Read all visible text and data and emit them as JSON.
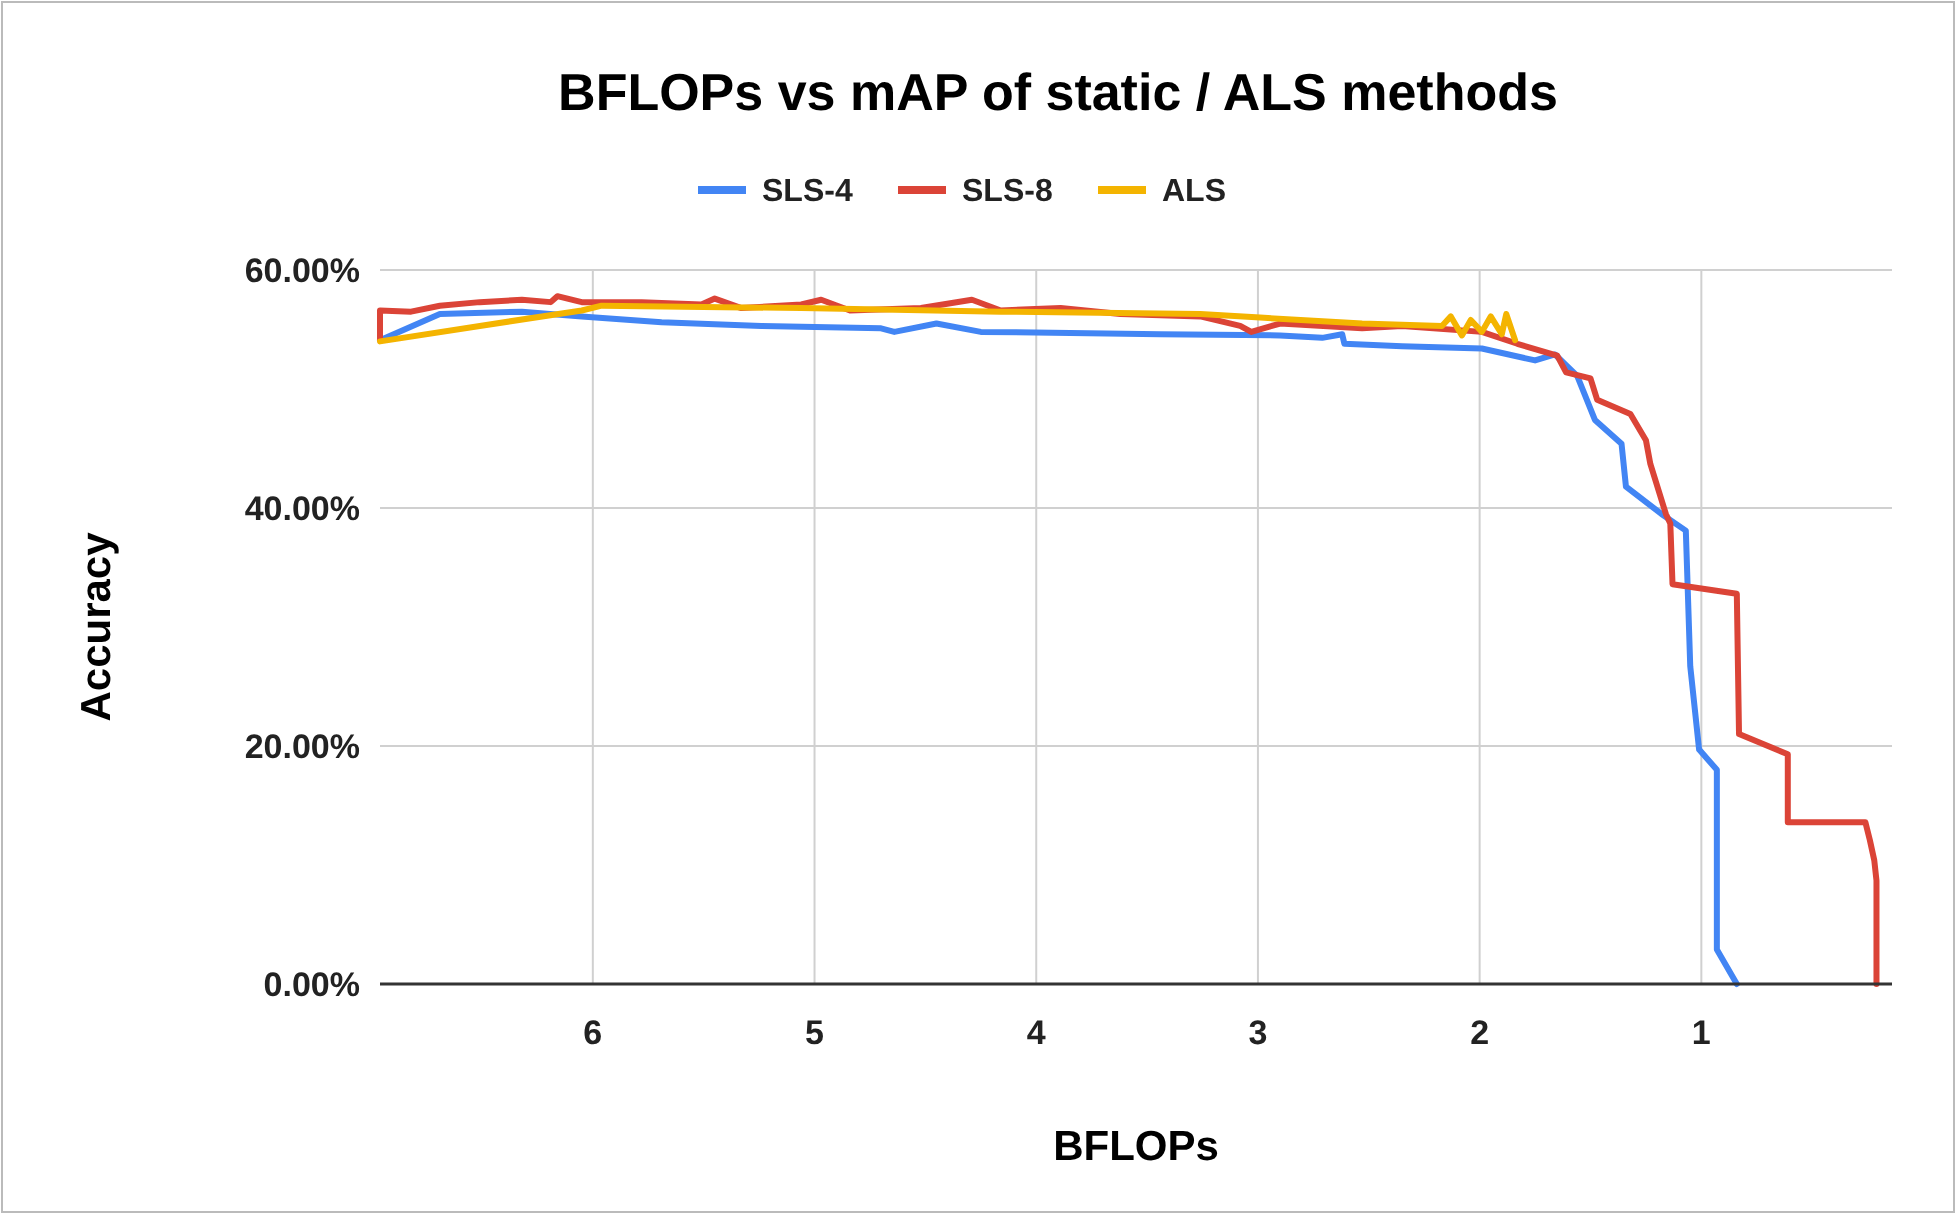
{
  "chart_data": {
    "type": "line",
    "title": "BFLOPs vs mAP of static / ALS methods",
    "xlabel": "BFLOPs",
    "ylabel": "Accuracy",
    "xlim": [
      6.96,
      0.14
    ],
    "xticks": [
      6,
      5,
      4,
      3,
      2,
      1
    ],
    "ylim": [
      0,
      60
    ],
    "yticks": [
      {
        "value": 0,
        "label": "0.00%"
      },
      {
        "value": 20,
        "label": "20.00%"
      },
      {
        "value": 40,
        "label": "40.00%"
      },
      {
        "value": 60,
        "label": "60.00%"
      }
    ],
    "grid": true,
    "legend": "top",
    "marker": "none",
    "line_style": "solid",
    "series": [
      {
        "name": "SLS-4",
        "color": "#4285f4",
        "x": [
          6.96,
          6.69,
          6.32,
          6.05,
          5.69,
          5.24,
          4.7,
          4.64,
          4.45,
          4.25,
          3.44,
          2.9,
          2.71,
          2.62,
          2.61,
          2.35,
          1.99,
          1.75,
          1.66,
          1.56,
          1.48,
          1.36,
          1.34,
          1.18,
          1.07,
          1.05,
          1.01,
          0.93,
          0.93,
          0.84
        ],
        "values": [
          54.1,
          56.3,
          56.5,
          56.1,
          55.6,
          55.3,
          55.1,
          54.8,
          55.5,
          54.8,
          54.6,
          54.5,
          54.3,
          54.6,
          53.8,
          53.6,
          53.4,
          52.4,
          52.9,
          51.1,
          47.4,
          45.4,
          41.8,
          39.5,
          38.1,
          26.7,
          19.7,
          18.0,
          2.9,
          0
        ]
      },
      {
        "name": "SLS-8",
        "color": "#db4437",
        "x": [
          6.96,
          6.96,
          6.82,
          6.69,
          6.51,
          6.32,
          6.19,
          6.16,
          6.05,
          5.78,
          5.51,
          5.45,
          5.33,
          5.06,
          4.97,
          4.84,
          4.52,
          4.29,
          4.16,
          3.89,
          3.62,
          3.26,
          3.08,
          3.03,
          2.9,
          2.53,
          2.35,
          1.99,
          1.83,
          1.65,
          1.61,
          1.5,
          1.47,
          1.32,
          1.25,
          1.23,
          1.16,
          1.14,
          1.13,
          0.84,
          0.83,
          0.61,
          0.61,
          0.26,
          0.24,
          0.22,
          0.21,
          0.21
        ],
        "values": [
          54.1,
          56.6,
          56.5,
          57.0,
          57.3,
          57.5,
          57.3,
          57.8,
          57.3,
          57.3,
          57.1,
          57.6,
          56.8,
          57.1,
          57.5,
          56.6,
          56.8,
          57.5,
          56.6,
          56.8,
          56.3,
          56.1,
          55.3,
          54.8,
          55.5,
          55.1,
          55.3,
          54.8,
          53.8,
          52.8,
          51.4,
          50.9,
          49.1,
          47.9,
          45.7,
          43.7,
          39.5,
          38.7,
          33.6,
          32.8,
          21.0,
          19.3,
          13.6,
          13.6,
          12.1,
          10.4,
          8.7,
          0
        ]
      },
      {
        "name": "ALS",
        "color": "#f4b400",
        "x": [
          6.96,
          6.51,
          6.05,
          5.96,
          5.06,
          4.16,
          3.26,
          2.99,
          2.53,
          2.17,
          2.13,
          2.08,
          2.04,
          1.99,
          1.95,
          1.9,
          1.88,
          1.84
        ],
        "values": [
          54.0,
          55.3,
          56.6,
          57.0,
          56.8,
          56.5,
          56.3,
          56.0,
          55.5,
          55.3,
          56.1,
          54.5,
          55.8,
          54.8,
          56.1,
          54.6,
          56.3,
          54.1
        ]
      }
    ]
  }
}
